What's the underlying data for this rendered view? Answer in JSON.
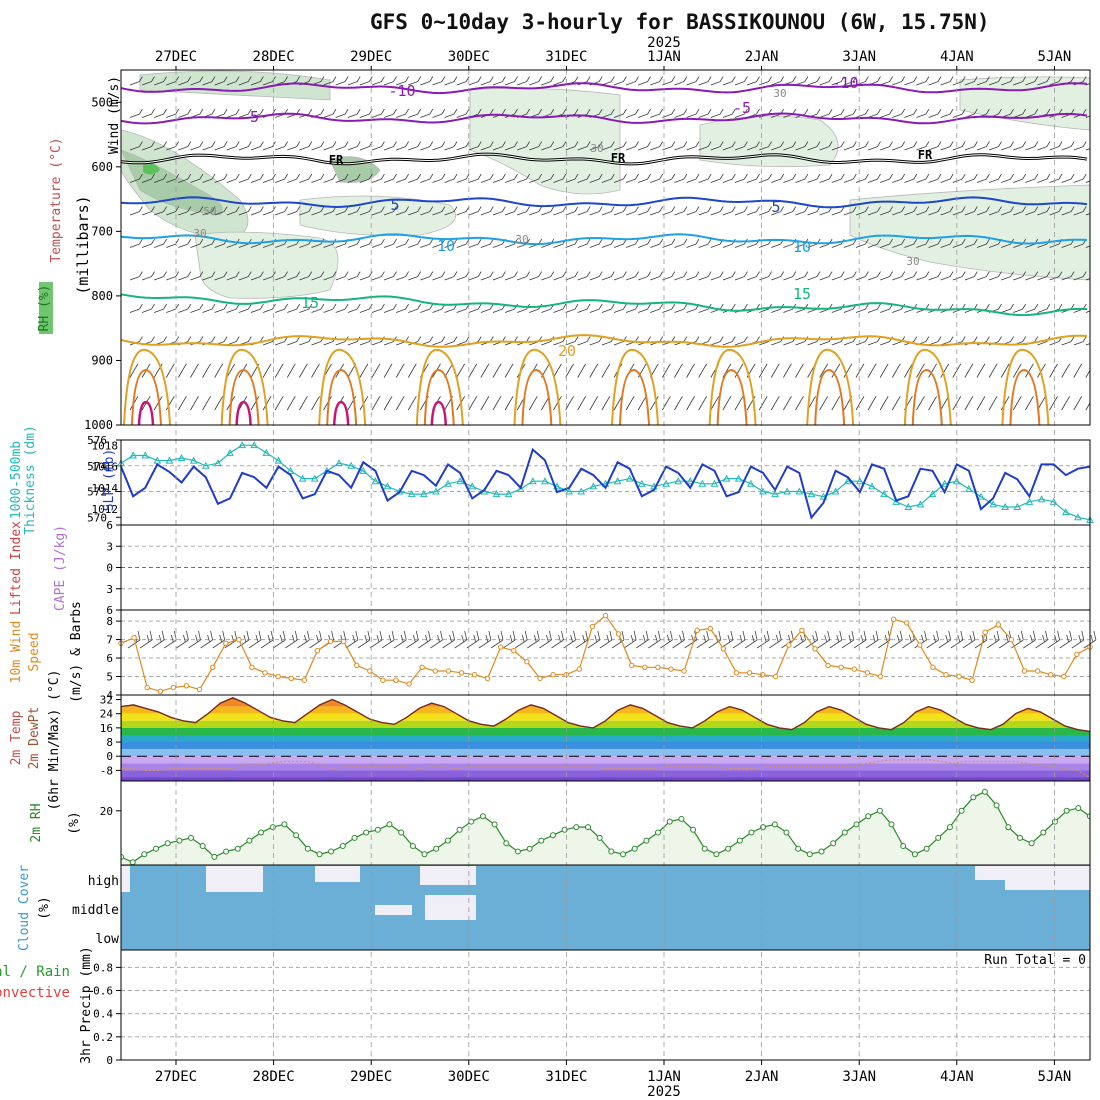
{
  "title": "GFS 0~10day 3-hourly for BASSIKOUNOU (6W, 15.75N)",
  "year_label": "2025",
  "date_labels": [
    "27DEC",
    "28DEC",
    "29DEC",
    "30DEC",
    "31DEC",
    "1JAN",
    "2JAN",
    "3JAN",
    "4JAN",
    "5JAN"
  ],
  "panel_labels": {
    "upper": {
      "wind": "Wind (m/s)",
      "temperature": "Temperature (°C)",
      "rh": "RH (%)",
      "millibars": "(millibars)"
    },
    "slp_thickness": {
      "slp": "SLP (mb)",
      "thickness1": "1000-500mb",
      "thickness2": "Thickness (dm)"
    },
    "stability": {
      "li": "Lifted Index",
      "cape": "CAPE (J/kg)"
    },
    "wind10": {
      "l1": "10m Wind",
      "l2": "Speed",
      "l3": "(m/s) & Barbs"
    },
    "temp2m": {
      "l1": "2m Temp",
      "l2": "2m DewPt",
      "l3": "(6hr Min/Max) (°C)"
    },
    "rh2m": {
      "l1": "2m RH",
      "unit": "(%)"
    },
    "cloud": {
      "l1": "Cloud Cover",
      "unit": "(%)",
      "high": "high",
      "middle": "middle",
      "low": "low"
    },
    "precip": {
      "total": "Total / Rain",
      "convective": "Convective",
      "l3": "3hr Precip (mm)",
      "run_total": "Run Total = 0"
    }
  },
  "colors": {
    "slp": "#1e3cc8",
    "thickness": "#22b8b8",
    "wind10": "#e08a1e",
    "rh2m": "#2a8a2a",
    "cloud": "#6baed6",
    "cloud_clear": "#f0eef6",
    "t_minus10": "#8a1ab4",
    "t_minus5": "#8a1ab4",
    "t_fr": "#000000",
    "t_5": "#1e46c8",
    "t_10": "#1ea0e6",
    "t_15": "#14b482",
    "t_20": "#e0a020",
    "t_25": "#e07820",
    "t_30": "#c81478"
  },
  "chart_data": [
    {
      "type": "contour",
      "panel": "upper-air",
      "ylabel": "(millibars)",
      "ylim": [
        1000,
        450
      ],
      "yticks": [
        500,
        600,
        700,
        800,
        900,
        1000
      ],
      "contours": [
        {
          "label": "-10",
          "level_mb": 478
        },
        {
          "label": "-5",
          "level_mb": 525
        },
        {
          "label": "FR",
          "level_mb": 588
        },
        {
          "label": "5",
          "level_mb": 655
        },
        {
          "label": "10",
          "level_mb": 712
        },
        {
          "label": "15",
          "level_mb": 802
        },
        {
          "label": "20",
          "level_mb": 870
        }
      ],
      "rh_labels": [
        "30",
        "50",
        "30",
        "30",
        "30",
        "30"
      ]
    },
    {
      "type": "line",
      "panel": "slp-thickness",
      "x_hours": [
        0,
        3,
        6,
        9,
        12,
        15,
        18,
        21,
        24,
        27,
        30,
        33,
        36,
        39,
        42,
        45,
        48,
        51,
        54,
        57,
        60,
        63,
        66,
        69,
        72,
        75,
        78,
        81,
        84,
        87,
        90,
        93,
        96,
        99,
        102,
        105,
        108,
        111,
        114,
        117,
        120,
        123,
        126,
        129,
        132,
        135,
        138,
        141,
        144,
        147,
        150,
        153,
        156,
        159,
        162,
        165,
        168,
        171,
        174,
        177,
        180,
        183,
        186,
        189,
        192,
        195,
        198,
        201,
        204,
        207,
        210,
        213,
        216,
        219,
        222,
        225,
        228,
        231,
        234,
        237,
        240
      ],
      "series": [
        {
          "name": "SLP (mb)",
          "yaxis": "right-inner",
          "ylim": [
            1010.5,
            1018.5
          ],
          "yticks": [
            1012,
            1014,
            1016,
            1018
          ],
          "values": [
            1016.0,
            1013.2,
            1014.0,
            1016.2,
            1015.5,
            1014.5,
            1016.0,
            1015.0,
            1012.5,
            1013.0,
            1015.4,
            1015.0,
            1014.0,
            1016.0,
            1015.2,
            1013.0,
            1013.4,
            1015.6,
            1015.2,
            1014.0,
            1016.4,
            1015.6,
            1012.8,
            1013.6,
            1015.6,
            1015.2,
            1014.2,
            1016.2,
            1015.4,
            1013.0,
            1013.8,
            1015.6,
            1015.2,
            1014.0,
            1017.6,
            1016.6,
            1013.6,
            1014.0,
            1015.8,
            1015.2,
            1014.0,
            1016.4,
            1015.8,
            1013.2,
            1013.8,
            1016.0,
            1015.4,
            1014.0,
            1016.2,
            1015.6,
            1013.2,
            1013.6,
            1016.0,
            1015.4,
            1013.8,
            1016.0,
            1015.4,
            1011.2,
            1012.6,
            1015.6,
            1015.0,
            1013.6,
            1016.2,
            1015.8,
            1012.8,
            1013.2,
            1015.8,
            1015.6,
            1013.6,
            1016.2,
            1015.6,
            1012.0,
            1013.0,
            1015.4,
            1014.8,
            1013.2,
            1016.2,
            1016.2,
            1015.2,
            1015.8,
            1016.0
          ]
        },
        {
          "name": "1000-500mb Thickness (dm)",
          "yaxis": "left",
          "ylim": [
            569.4,
            576
          ],
          "yticks": [
            570,
            572,
            574,
            576
          ],
          "values": [
            574.2,
            574.8,
            574.8,
            574.4,
            574.4,
            574.6,
            574.4,
            574.0,
            574.2,
            575.0,
            575.6,
            575.6,
            575.0,
            574.4,
            573.6,
            573.0,
            573.0,
            573.6,
            574.2,
            574.0,
            573.6,
            572.8,
            572.4,
            572.0,
            571.8,
            571.8,
            572.0,
            572.6,
            572.8,
            572.4,
            572.0,
            571.8,
            571.8,
            572.2,
            572.8,
            572.8,
            572.4,
            572.0,
            572.0,
            572.4,
            572.6,
            572.8,
            573.0,
            572.6,
            572.4,
            572.6,
            572.8,
            572.8,
            572.6,
            572.6,
            573.0,
            573.0,
            572.6,
            572.0,
            571.8,
            572.0,
            572.0,
            571.8,
            571.6,
            572.0,
            572.8,
            572.8,
            572.4,
            571.8,
            571.2,
            570.8,
            571.0,
            571.8,
            572.6,
            572.8,
            572.2,
            571.6,
            571.0,
            570.8,
            570.8,
            571.2,
            571.4,
            571.2,
            570.4,
            570.0,
            569.8
          ]
        }
      ]
    },
    {
      "type": "line",
      "panel": "stability",
      "series": [
        {
          "name": "Lifted Index",
          "values": []
        },
        {
          "name": "CAPE (J/kg)",
          "values": []
        }
      ],
      "ylim": [
        6,
        -6
      ],
      "yticks": [
        -6,
        -3,
        0,
        3,
        6
      ],
      "reference_line": 0
    },
    {
      "type": "line",
      "panel": "10m-wind",
      "ylabel": "(m/s)",
      "ylim": [
        4,
        8.6
      ],
      "yticks": [
        4,
        5,
        6,
        7,
        8
      ],
      "series": [
        {
          "name": "10m Wind Speed",
          "values": [
            6.8,
            7.1,
            4.4,
            4.2,
            4.4,
            4.5,
            4.3,
            5.5,
            6.8,
            7.0,
            5.5,
            5.2,
            5.0,
            4.9,
            4.8,
            6.4,
            6.9,
            6.9,
            5.6,
            5.3,
            4.8,
            4.8,
            4.6,
            5.5,
            5.3,
            5.3,
            5.2,
            5.1,
            4.9,
            6.6,
            6.4,
            5.8,
            4.9,
            5.1,
            5.1,
            5.4,
            7.7,
            8.3,
            7.3,
            5.6,
            5.5,
            5.5,
            5.4,
            5.3,
            7.5,
            7.6,
            6.5,
            5.2,
            5.2,
            5.1,
            5.0,
            6.7,
            7.5,
            6.5,
            5.6,
            5.5,
            5.4,
            5.2,
            5.0,
            8.1,
            7.9,
            6.7,
            5.5,
            5.1,
            5.0,
            4.8,
            7.4,
            7.8,
            7.0,
            5.3,
            5.3,
            5.1,
            5.0,
            6.2,
            6.6
          ]
        }
      ]
    },
    {
      "type": "area",
      "panel": "2m-temp",
      "ylabel": "(°C)",
      "ylim": [
        -14,
        34
      ],
      "yticks": [
        -8,
        0,
        8,
        16,
        24,
        32
      ],
      "series": [
        {
          "name": "2m Temp",
          "values": [
            28,
            29,
            27,
            25,
            22,
            20,
            19,
            24,
            30,
            33,
            30,
            26,
            22,
            20,
            19,
            24,
            29,
            32,
            29,
            25,
            21,
            19,
            18,
            22,
            27,
            30,
            28,
            24,
            20,
            18,
            17,
            21,
            26,
            29,
            27,
            23,
            19,
            17,
            16,
            20,
            26,
            29,
            27,
            23,
            19,
            17,
            16,
            20,
            25,
            28,
            26,
            22,
            18,
            16,
            15,
            19,
            25,
            28,
            26,
            22,
            18,
            16,
            15,
            19,
            25,
            28,
            26,
            22,
            18,
            16,
            15,
            18,
            24,
            27,
            25,
            21,
            17,
            15,
            14
          ]
        },
        {
          "name": "2m DewPt",
          "values": [
            -7,
            -7,
            -8,
            -8,
            -7,
            -7,
            -7,
            -7,
            -7,
            -7,
            -5,
            -5,
            -4,
            -3,
            -3,
            -3,
            -5,
            -7,
            -6,
            -6,
            -6,
            -6,
            -6,
            -6,
            -7,
            -6,
            -6,
            -7,
            -6,
            -6,
            -6,
            -6,
            -6,
            -6,
            -6,
            -6,
            -6,
            -6,
            -6,
            -7,
            -7,
            -7,
            -7,
            -7,
            -6,
            -6,
            -6,
            -6,
            -6,
            -7,
            -7,
            -7,
            -6,
            -6,
            -6,
            -6,
            -6,
            -6,
            -6,
            -6,
            -4,
            -3,
            -2,
            -2,
            -2,
            -2,
            -3,
            -4,
            -3,
            -3,
            -3,
            -3,
            -3,
            -4,
            -5,
            -6,
            -7,
            -8,
            -12
          ]
        }
      ]
    },
    {
      "type": "area",
      "panel": "2m-rh",
      "ylabel": "(%)",
      "ylim": [
        0,
        31
      ],
      "yticks": [
        20
      ],
      "series": [
        {
          "name": "2m RH",
          "values": [
            3,
            1,
            4,
            6,
            8,
            9,
            10,
            7,
            3,
            5,
            6,
            9,
            12,
            14,
            15,
            11,
            6,
            4,
            5,
            7,
            10,
            12,
            13,
            15,
            12,
            7,
            4,
            6,
            9,
            13,
            16,
            18,
            15,
            8,
            5,
            6,
            9,
            11,
            13,
            14,
            14,
            10,
            5,
            4,
            6,
            9,
            12,
            16,
            17,
            13,
            6,
            4,
            6,
            9,
            12,
            14,
            15,
            12,
            6,
            4,
            5,
            8,
            12,
            15,
            18,
            20,
            15,
            7,
            4,
            6,
            10,
            14,
            20,
            25,
            27,
            22,
            14,
            10,
            8,
            12,
            16,
            20,
            21,
            18
          ]
        }
      ]
    },
    {
      "type": "area",
      "panel": "cloud-cover",
      "ylabel": "(%)",
      "levels": [
        "high",
        "middle",
        "low"
      ]
    },
    {
      "type": "bar",
      "panel": "3hr-precip",
      "ylabel": "3hr Precip (mm)",
      "ylim": [
        0,
        1
      ],
      "yticks": [
        0,
        0.2,
        0.4,
        0.6,
        0.8
      ],
      "series": [
        {
          "name": "Total / Rain",
          "values": []
        },
        {
          "name": "Convective",
          "values": []
        }
      ],
      "annotation": "Run Total = 0"
    }
  ]
}
